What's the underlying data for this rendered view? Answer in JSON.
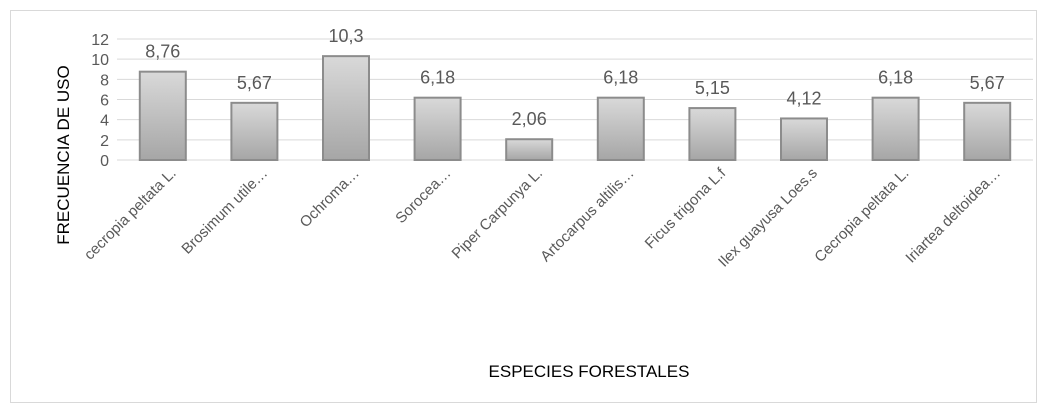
{
  "chart_data": {
    "type": "bar",
    "categories": [
      "cecropia peltata L.",
      "Brosimum utile…",
      "Ochroma…",
      "Sorocea…",
      "Piper Carpunya L.",
      "Artocarpus altilis…",
      "Ficus trigona L.f",
      "Ilex guayusa Loes.s",
      "Cecropia peltata L.",
      "Iriartea deltoidea…"
    ],
    "values": [
      8.76,
      5.67,
      10.3,
      6.18,
      2.06,
      6.18,
      5.15,
      4.12,
      6.18,
      5.67
    ],
    "value_labels": [
      "8,76",
      "5,67",
      "10,3",
      "6,18",
      "2,06",
      "6,18",
      "5,15",
      "4,12",
      "6,18",
      "5,67"
    ],
    "xlabel": "ESPECIES FORESTALES",
    "ylabel": "FRECUENCIA DE USO",
    "ylim": [
      0,
      12
    ],
    "yticks": [
      0,
      2,
      4,
      6,
      8,
      10,
      12
    ],
    "grid": true,
    "legend": "none",
    "colors": {
      "bar_fill_top": "#d9d9d9",
      "bar_fill_bottom": "#a6a6a6",
      "bar_stroke": "#8c8c8c",
      "grid": "#d9d9d9",
      "text": "#595959"
    }
  }
}
